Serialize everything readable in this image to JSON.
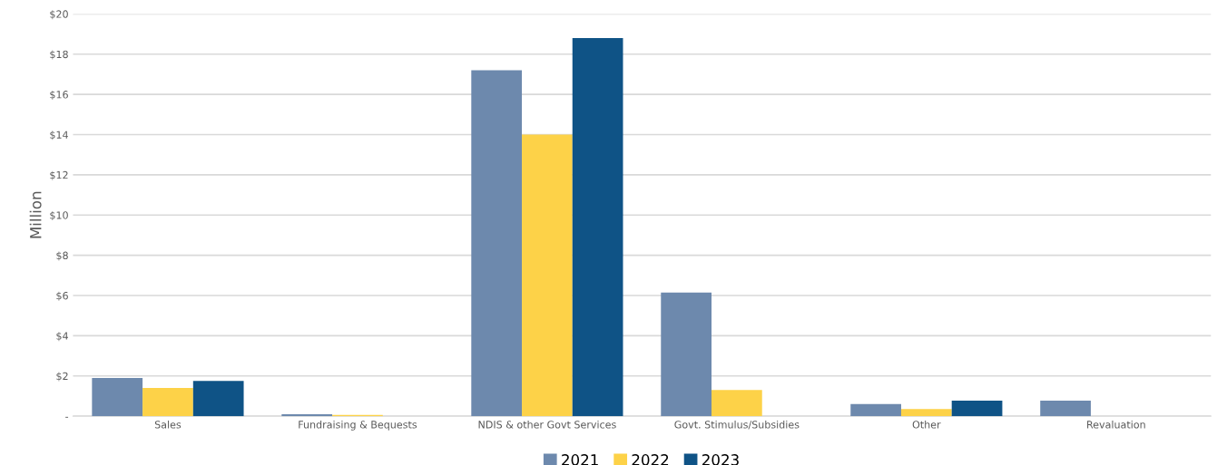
{
  "chart_data": {
    "type": "bar",
    "ylabel": "Million",
    "categories": [
      "Sales",
      "Fundraising & Bequests",
      "NDIS & other Govt Services",
      "Govt. Stimulus/Subsidies",
      "Other",
      "Revaluation"
    ],
    "series": [
      {
        "name": "2021",
        "color": "#6d89ad",
        "values": [
          1.9,
          0.1,
          17.2,
          6.15,
          0.6,
          0.77
        ]
      },
      {
        "name": "2022",
        "color": "#fdd248",
        "values": [
          1.4,
          0.06,
          14.0,
          1.3,
          0.35,
          null
        ]
      },
      {
        "name": "2023",
        "color": "#0f5386",
        "values": [
          1.75,
          null,
          18.8,
          null,
          0.77,
          null
        ]
      }
    ],
    "ylim": [
      0,
      20
    ],
    "yticks": [
      {
        "value": 0,
        "label": "-"
      },
      {
        "value": 2,
        "label": "$2"
      },
      {
        "value": 4,
        "label": "$4"
      },
      {
        "value": 6,
        "label": "$6"
      },
      {
        "value": 8,
        "label": "$8"
      },
      {
        "value": 10,
        "label": "$10"
      },
      {
        "value": 12,
        "label": "$12"
      },
      {
        "value": 14,
        "label": "$14"
      },
      {
        "value": 16,
        "label": "$16"
      },
      {
        "value": 18,
        "label": "$18"
      },
      {
        "value": 20,
        "label": "$20"
      }
    ],
    "grid": "y",
    "legend": "bottom"
  }
}
